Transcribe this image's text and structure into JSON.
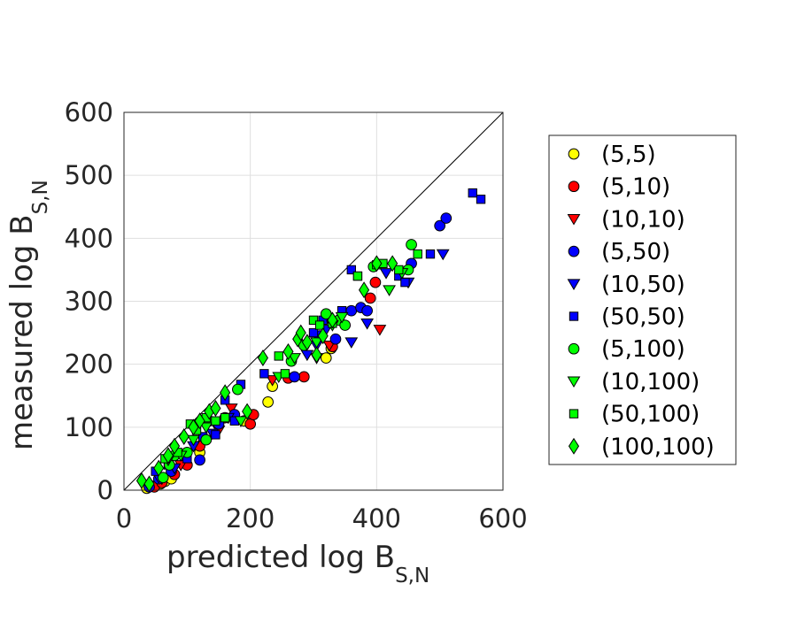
{
  "chart_data": {
    "type": "scatter",
    "title": "",
    "xlabel": {
      "main": "predicted log B",
      "sub": "S,N"
    },
    "ylabel": {
      "main": "measured log B",
      "sub": "S,N"
    },
    "xlim": [
      0,
      600
    ],
    "ylim": [
      0,
      600
    ],
    "xticks": [
      0,
      200,
      400,
      600
    ],
    "yticks": [
      0,
      100,
      200,
      300,
      400,
      500,
      600
    ],
    "grid": true,
    "legend_position": "right",
    "reference_line": {
      "from": [
        0,
        0
      ],
      "to": [
        600,
        600
      ],
      "color": "#000000"
    },
    "series": [
      {
        "name": "(5,5)",
        "marker": "circle",
        "color": "#ffff00",
        "points": [
          [
            36,
            3
          ],
          [
            42,
            7
          ],
          [
            58,
            10
          ],
          [
            65,
            14
          ],
          [
            75,
            18
          ],
          [
            120,
            60
          ],
          [
            190,
            110
          ],
          [
            228,
            140
          ],
          [
            235,
            165
          ],
          [
            320,
            210
          ],
          [
            328,
            225
          ]
        ]
      },
      {
        "name": "(5,10)",
        "marker": "circle",
        "color": "#ff0000",
        "points": [
          [
            48,
            5
          ],
          [
            60,
            12
          ],
          [
            80,
            25
          ],
          [
            100,
            40
          ],
          [
            120,
            70
          ],
          [
            160,
            115
          ],
          [
            200,
            105
          ],
          [
            205,
            120
          ],
          [
            260,
            178
          ],
          [
            285,
            180
          ],
          [
            330,
            228
          ],
          [
            390,
            305
          ],
          [
            398,
            330
          ]
        ]
      },
      {
        "name": "(10,10)",
        "marker": "triangle-down",
        "color": "#ff0000",
        "points": [
          [
            60,
            18
          ],
          [
            90,
            40
          ],
          [
            150,
            95
          ],
          [
            170,
            130
          ],
          [
            235,
            175
          ],
          [
            305,
            210
          ],
          [
            325,
            230
          ],
          [
            405,
            255
          ]
        ]
      },
      {
        "name": "(5,50)",
        "marker": "circle",
        "color": "#0000ff",
        "points": [
          [
            40,
            5
          ],
          [
            55,
            18
          ],
          [
            75,
            30
          ],
          [
            95,
            55
          ],
          [
            120,
            48
          ],
          [
            130,
            80
          ],
          [
            150,
            105
          ],
          [
            175,
            120
          ],
          [
            270,
            180
          ],
          [
            310,
            245
          ],
          [
            335,
            240
          ],
          [
            360,
            285
          ],
          [
            375,
            290
          ],
          [
            385,
            285
          ],
          [
            455,
            360
          ],
          [
            500,
            420
          ],
          [
            510,
            432
          ]
        ]
      },
      {
        "name": "(10,50)",
        "marker": "triangle-down",
        "color": "#0000ff",
        "points": [
          [
            55,
            20
          ],
          [
            80,
            35
          ],
          [
            110,
            70
          ],
          [
            140,
            90
          ],
          [
            165,
            115
          ],
          [
            290,
            215
          ],
          [
            305,
            230
          ],
          [
            320,
            255
          ],
          [
            360,
            235
          ],
          [
            385,
            265
          ],
          [
            415,
            345
          ],
          [
            450,
            330
          ],
          [
            505,
            375
          ]
        ]
      },
      {
        "name": "(50,50)",
        "marker": "square",
        "color": "#0000ff",
        "points": [
          [
            50,
            30
          ],
          [
            70,
            40
          ],
          [
            100,
            50
          ],
          [
            125,
            85
          ],
          [
            145,
            88
          ],
          [
            160,
            143
          ],
          [
            175,
            110
          ],
          [
            185,
            168
          ],
          [
            222,
            185
          ],
          [
            300,
            250
          ],
          [
            315,
            270
          ],
          [
            345,
            285
          ],
          [
            360,
            350
          ],
          [
            370,
            340
          ],
          [
            435,
            340
          ],
          [
            445,
            330
          ],
          [
            485,
            375
          ],
          [
            552,
            472
          ],
          [
            565,
            462
          ]
        ]
      },
      {
        "name": "(5,100)",
        "marker": "circle",
        "color": "#00ff00",
        "points": [
          [
            62,
            20
          ],
          [
            72,
            40
          ],
          [
            80,
            55
          ],
          [
            100,
            60
          ],
          [
            130,
            80
          ],
          [
            135,
            110
          ],
          [
            180,
            160
          ],
          [
            265,
            205
          ],
          [
            285,
            230
          ],
          [
            320,
            280
          ],
          [
            340,
            270
          ],
          [
            350,
            262
          ],
          [
            395,
            355
          ],
          [
            450,
            350
          ],
          [
            455,
            390
          ]
        ]
      },
      {
        "name": "(10,100)",
        "marker": "triangle-down",
        "color": "#00ff00",
        "points": [
          [
            70,
            48
          ],
          [
            90,
            55
          ],
          [
            110,
            80
          ],
          [
            130,
            100
          ],
          [
            185,
            110
          ],
          [
            245,
            180
          ],
          [
            270,
            210
          ],
          [
            305,
            235
          ],
          [
            330,
            262
          ],
          [
            345,
            275
          ],
          [
            420,
            318
          ],
          [
            440,
            345
          ]
        ]
      },
      {
        "name": "(50,100)",
        "marker": "square",
        "color": "#00ff00",
        "points": [
          [
            65,
            50
          ],
          [
            85,
            60
          ],
          [
            105,
            105
          ],
          [
            115,
            95
          ],
          [
            130,
            115
          ],
          [
            145,
            110
          ],
          [
            160,
            115
          ],
          [
            245,
            213
          ],
          [
            255,
            185
          ],
          [
            300,
            270
          ],
          [
            310,
            262
          ],
          [
            330,
            265
          ],
          [
            370,
            340
          ],
          [
            400,
            358
          ],
          [
            410,
            360
          ],
          [
            435,
            350
          ],
          [
            465,
            375
          ]
        ]
      },
      {
        "name": "(100,100)",
        "marker": "diamond",
        "color": "#00ff00",
        "points": [
          [
            28,
            15
          ],
          [
            40,
            10
          ],
          [
            55,
            35
          ],
          [
            70,
            55
          ],
          [
            80,
            70
          ],
          [
            95,
            85
          ],
          [
            110,
            100
          ],
          [
            120,
            110
          ],
          [
            135,
            125
          ],
          [
            145,
            130
          ],
          [
            160,
            155
          ],
          [
            195,
            125
          ],
          [
            220,
            210
          ],
          [
            260,
            220
          ],
          [
            275,
            240
          ],
          [
            280,
            250
          ],
          [
            290,
            235
          ],
          [
            305,
            215
          ],
          [
            315,
            245
          ],
          [
            330,
            270
          ],
          [
            380,
            318
          ],
          [
            400,
            360
          ],
          [
            425,
            360
          ]
        ]
      }
    ]
  }
}
